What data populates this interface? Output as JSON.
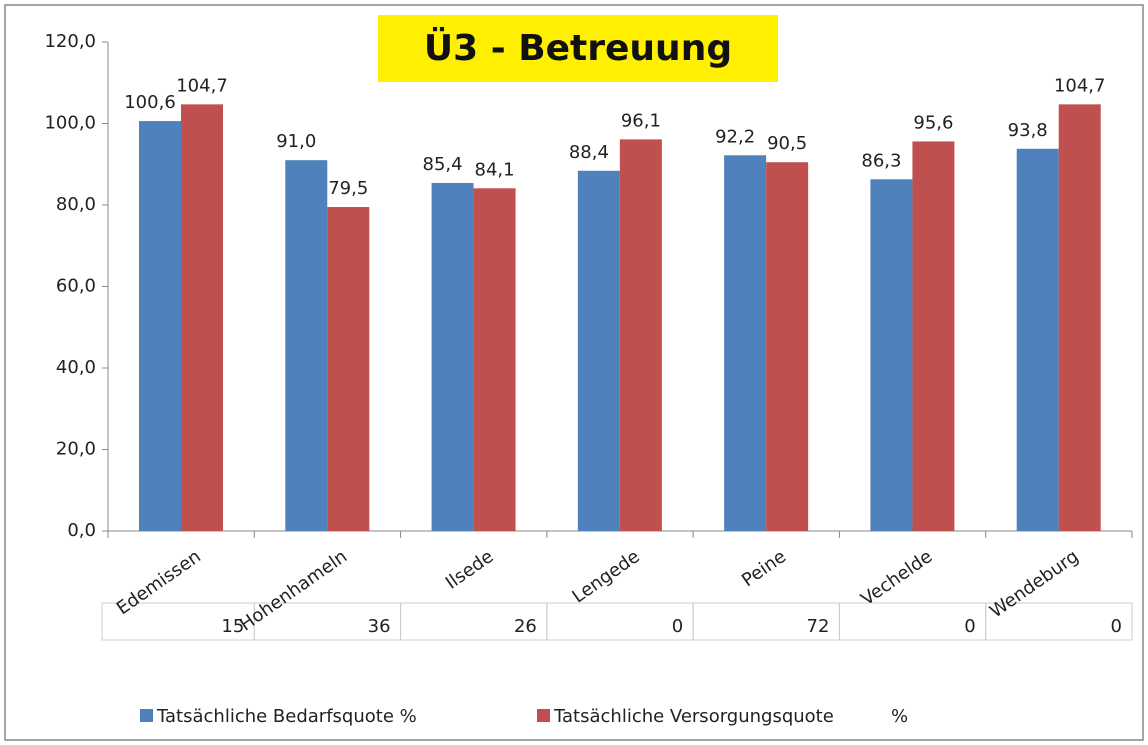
{
  "chart_data": {
    "type": "bar",
    "title": "Ü3 - Betreuung",
    "categories": [
      "Edemissen",
      "Hohenhameln",
      "Ilsede",
      "Lengede",
      "Peine",
      "Vechelde",
      "Wendeburg"
    ],
    "series": [
      {
        "name": "Tatsächliche Bedarfsquote %",
        "color": "#4f81bd",
        "values": [
          100.6,
          91.0,
          85.4,
          88.4,
          92.2,
          86.3,
          93.8
        ],
        "value_labels": [
          "100,6",
          "91,0",
          "85,4",
          "88,4",
          "92,2",
          "86,3",
          "93,8"
        ]
      },
      {
        "name": "Tatsächliche Versorgungsquote          %",
        "color": "#c0504d",
        "values": [
          104.7,
          79.5,
          84.1,
          96.1,
          90.5,
          95.6,
          104.7
        ],
        "value_labels": [
          "104,7",
          "79,5",
          "84,1",
          "96,1",
          "90,5",
          "95,6",
          "104,7"
        ]
      }
    ],
    "table": [
      15,
      36,
      26,
      0,
      72,
      0,
      0
    ],
    "ylim": [
      0,
      120
    ],
    "yticks": [
      {
        "value": 0,
        "label": "0,0"
      },
      {
        "value": 20,
        "label": "20,0"
      },
      {
        "value": 40,
        "label": "40,0"
      },
      {
        "value": 60,
        "label": "60,0"
      },
      {
        "value": 80,
        "label": "80,0"
      },
      {
        "value": 100,
        "label": "100,0"
      },
      {
        "value": 120,
        "label": "120,0"
      }
    ],
    "legend": "bottom"
  }
}
